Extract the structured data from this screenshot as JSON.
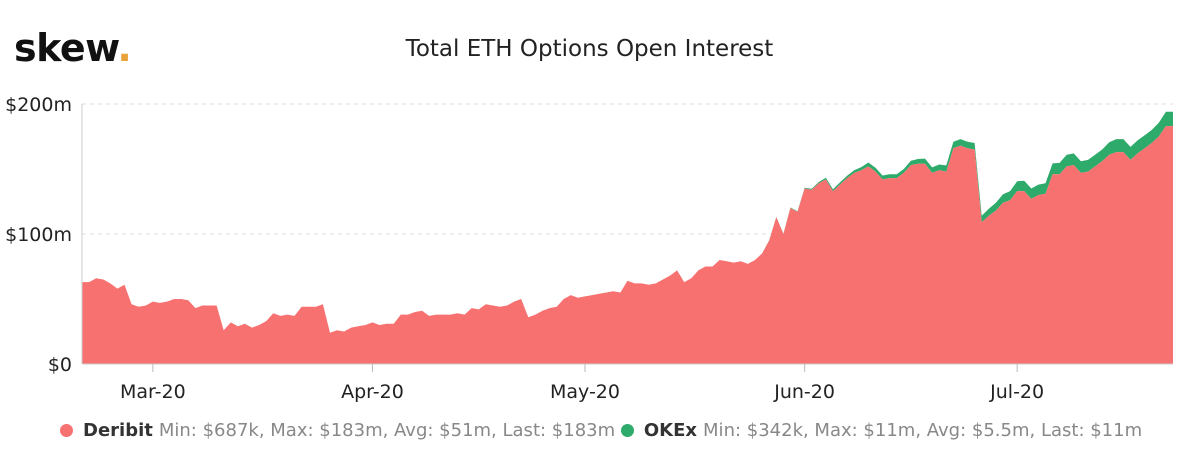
{
  "logo": {
    "text": "skew",
    "dot": "."
  },
  "chart_data": {
    "type": "area",
    "stacked": true,
    "title": "Total ETH Options Open Interest",
    "y_ticks": [
      {
        "value": 0,
        "label": "$0"
      },
      {
        "value": 100,
        "label": "$100m"
      },
      {
        "value": 200,
        "label": "$200m"
      }
    ],
    "y_unit": "USD millions",
    "ylim": [
      0,
      200
    ],
    "x_range": [
      "2020-02-20",
      "2020-07-23"
    ],
    "x_ticks": [
      {
        "date": "2020-03-01",
        "label": "Mar-20"
      },
      {
        "date": "2020-04-01",
        "label": "Apr-20"
      },
      {
        "date": "2020-05-01",
        "label": "May-20"
      },
      {
        "date": "2020-06-01",
        "label": "Jun-20"
      },
      {
        "date": "2020-07-01",
        "label": "Jul-20"
      }
    ],
    "grid": "horizontal dashed",
    "legend_position": "bottom-left",
    "series": [
      {
        "name": "Deribit",
        "color": "#f87171",
        "stats": "Min: $687k, Max: $183m, Avg: $51m, Last: $183m",
        "points": [
          [
            "2020-02-20",
            63
          ],
          [
            "2020-02-21",
            63
          ],
          [
            "2020-02-22",
            66
          ],
          [
            "2020-02-23",
            65
          ],
          [
            "2020-02-24",
            62
          ],
          [
            "2020-02-25",
            58
          ],
          [
            "2020-02-26",
            61
          ],
          [
            "2020-02-27",
            46
          ],
          [
            "2020-02-28",
            44
          ],
          [
            "2020-02-29",
            45
          ],
          [
            "2020-03-01",
            48
          ],
          [
            "2020-03-02",
            47
          ],
          [
            "2020-03-03",
            48
          ],
          [
            "2020-03-04",
            50
          ],
          [
            "2020-03-05",
            50
          ],
          [
            "2020-03-06",
            49
          ],
          [
            "2020-03-07",
            43
          ],
          [
            "2020-03-08",
            45
          ],
          [
            "2020-03-09",
            45
          ],
          [
            "2020-03-10",
            45
          ],
          [
            "2020-03-11",
            26
          ],
          [
            "2020-03-12",
            32
          ],
          [
            "2020-03-13",
            29
          ],
          [
            "2020-03-14",
            31
          ],
          [
            "2020-03-15",
            28
          ],
          [
            "2020-03-16",
            30
          ],
          [
            "2020-03-17",
            33
          ],
          [
            "2020-03-18",
            39
          ],
          [
            "2020-03-19",
            37
          ],
          [
            "2020-03-20",
            38
          ],
          [
            "2020-03-21",
            37
          ],
          [
            "2020-03-22",
            44
          ],
          [
            "2020-03-23",
            44
          ],
          [
            "2020-03-24",
            44
          ],
          [
            "2020-03-25",
            46
          ],
          [
            "2020-03-26",
            24
          ],
          [
            "2020-03-27",
            26
          ],
          [
            "2020-03-28",
            25
          ],
          [
            "2020-03-29",
            28
          ],
          [
            "2020-03-30",
            29
          ],
          [
            "2020-03-31",
            30
          ],
          [
            "2020-04-01",
            32
          ],
          [
            "2020-04-02",
            30
          ],
          [
            "2020-04-03",
            31
          ],
          [
            "2020-04-04",
            31
          ],
          [
            "2020-04-05",
            38
          ],
          [
            "2020-04-06",
            38
          ],
          [
            "2020-04-07",
            40
          ],
          [
            "2020-04-08",
            41
          ],
          [
            "2020-04-09",
            37
          ],
          [
            "2020-04-10",
            38
          ],
          [
            "2020-04-11",
            38
          ],
          [
            "2020-04-12",
            38
          ],
          [
            "2020-04-13",
            39
          ],
          [
            "2020-04-14",
            38
          ],
          [
            "2020-04-15",
            43
          ],
          [
            "2020-04-16",
            42
          ],
          [
            "2020-04-17",
            46
          ],
          [
            "2020-04-18",
            45
          ],
          [
            "2020-04-19",
            44
          ],
          [
            "2020-04-20",
            45
          ],
          [
            "2020-04-21",
            48
          ],
          [
            "2020-04-22",
            50
          ],
          [
            "2020-04-23",
            36
          ],
          [
            "2020-04-24",
            38
          ],
          [
            "2020-04-25",
            41
          ],
          [
            "2020-04-26",
            43
          ],
          [
            "2020-04-27",
            44
          ],
          [
            "2020-04-28",
            50
          ],
          [
            "2020-04-29",
            53
          ],
          [
            "2020-04-30",
            51
          ],
          [
            "2020-05-01",
            52
          ],
          [
            "2020-05-02",
            53
          ],
          [
            "2020-05-03",
            54
          ],
          [
            "2020-05-04",
            55
          ],
          [
            "2020-05-05",
            56
          ],
          [
            "2020-05-06",
            55
          ],
          [
            "2020-05-07",
            64
          ],
          [
            "2020-05-08",
            62
          ],
          [
            "2020-05-09",
            62
          ],
          [
            "2020-05-10",
            61
          ],
          [
            "2020-05-11",
            62
          ],
          [
            "2020-05-12",
            65
          ],
          [
            "2020-05-13",
            68
          ],
          [
            "2020-05-14",
            72
          ],
          [
            "2020-05-15",
            63
          ],
          [
            "2020-05-16",
            66
          ],
          [
            "2020-05-17",
            72
          ],
          [
            "2020-05-18",
            75
          ],
          [
            "2020-05-19",
            75
          ],
          [
            "2020-05-20",
            80
          ],
          [
            "2020-05-21",
            79
          ],
          [
            "2020-05-22",
            78
          ],
          [
            "2020-05-23",
            79
          ],
          [
            "2020-05-24",
            77
          ],
          [
            "2020-05-25",
            80
          ],
          [
            "2020-05-26",
            85
          ],
          [
            "2020-05-27",
            95
          ],
          [
            "2020-05-28",
            113
          ],
          [
            "2020-05-29",
            100
          ],
          [
            "2020-05-30",
            120
          ],
          [
            "2020-05-31",
            117
          ],
          [
            "2020-06-01",
            135
          ],
          [
            "2020-06-02",
            134
          ],
          [
            "2020-06-03",
            139
          ],
          [
            "2020-06-04",
            142
          ],
          [
            "2020-06-05",
            133
          ],
          [
            "2020-06-06",
            138
          ],
          [
            "2020-06-07",
            143
          ],
          [
            "2020-06-08",
            147
          ],
          [
            "2020-06-09",
            149
          ],
          [
            "2020-06-10",
            152
          ],
          [
            "2020-06-11",
            148
          ],
          [
            "2020-06-12",
            142
          ],
          [
            "2020-06-13",
            143
          ],
          [
            "2020-06-14",
            143
          ],
          [
            "2020-06-15",
            147
          ],
          [
            "2020-06-16",
            153
          ],
          [
            "2020-06-17",
            154
          ],
          [
            "2020-06-18",
            154
          ],
          [
            "2020-06-19",
            147
          ],
          [
            "2020-06-20",
            149
          ],
          [
            "2020-06-21",
            148
          ],
          [
            "2020-06-22",
            166
          ],
          [
            "2020-06-23",
            168
          ],
          [
            "2020-06-24",
            166
          ],
          [
            "2020-06-25",
            165
          ],
          [
            "2020-06-26",
            109
          ],
          [
            "2020-06-27",
            114
          ],
          [
            "2020-06-28",
            118
          ],
          [
            "2020-06-29",
            124
          ],
          [
            "2020-06-30",
            126
          ],
          [
            "2020-07-01",
            133
          ],
          [
            "2020-07-02",
            133
          ],
          [
            "2020-07-03",
            127
          ],
          [
            "2020-07-04",
            130
          ],
          [
            "2020-07-05",
            131
          ],
          [
            "2020-07-06",
            146
          ],
          [
            "2020-07-07",
            146
          ],
          [
            "2020-07-08",
            152
          ],
          [
            "2020-07-09",
            153
          ],
          [
            "2020-07-10",
            147
          ],
          [
            "2020-07-11",
            148
          ],
          [
            "2020-07-12",
            152
          ],
          [
            "2020-07-13",
            156
          ],
          [
            "2020-07-14",
            161
          ],
          [
            "2020-07-15",
            163
          ],
          [
            "2020-07-16",
            163
          ],
          [
            "2020-07-17",
            157
          ],
          [
            "2020-07-18",
            162
          ],
          [
            "2020-07-19",
            166
          ],
          [
            "2020-07-20",
            170
          ],
          [
            "2020-07-21",
            175
          ],
          [
            "2020-07-22",
            183
          ],
          [
            "2020-07-23",
            183
          ]
        ]
      },
      {
        "name": "OKEx",
        "color": "#2eaa6a",
        "stats": "Min: $342k, Max: $11m, Avg: $5.5m, Last: $11m",
        "points": [
          [
            "2020-02-20",
            0
          ],
          [
            "2020-05-25",
            0
          ],
          [
            "2020-06-01",
            0.5
          ],
          [
            "2020-06-05",
            1.5
          ],
          [
            "2020-06-08",
            2
          ],
          [
            "2020-06-10",
            3
          ],
          [
            "2020-06-15",
            3
          ],
          [
            "2020-06-18",
            4
          ],
          [
            "2020-06-22",
            5
          ],
          [
            "2020-06-25",
            5
          ],
          [
            "2020-06-26",
            5
          ],
          [
            "2020-06-28",
            6
          ],
          [
            "2020-06-30",
            7
          ],
          [
            "2020-07-02",
            8
          ],
          [
            "2020-07-05",
            8
          ],
          [
            "2020-07-08",
            9
          ],
          [
            "2020-07-10",
            9
          ],
          [
            "2020-07-13",
            9
          ],
          [
            "2020-07-15",
            10
          ],
          [
            "2020-07-18",
            10
          ],
          [
            "2020-07-20",
            10
          ],
          [
            "2020-07-22",
            11
          ],
          [
            "2020-07-23",
            11
          ]
        ]
      }
    ]
  }
}
